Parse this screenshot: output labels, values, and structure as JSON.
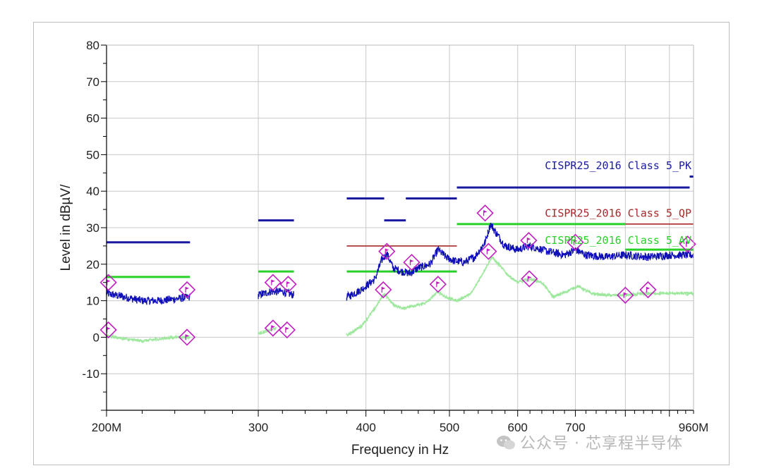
{
  "chart_data": {
    "type": "line",
    "title": "",
    "xlabel": "Frequency in Hz",
    "ylabel": "Level in dBµV/",
    "xscale": "log",
    "xlim": [
      200,
      960
    ],
    "ylim": [
      -20,
      80
    ],
    "x_major_ticks": [
      {
        "value": 200,
        "label": "200M"
      },
      {
        "value": 300,
        "label": "300"
      },
      {
        "value": 400,
        "label": "400"
      },
      {
        "value": 500,
        "label": "500"
      },
      {
        "value": 600,
        "label": "600"
      },
      {
        "value": 700,
        "label": "700"
      },
      {
        "value": 960,
        "label": "960M"
      }
    ],
    "x_minor_ticks": [
      800,
      900
    ],
    "y_ticks": [
      -10,
      0,
      10,
      20,
      30,
      40,
      50,
      60,
      70,
      80
    ],
    "grid": true,
    "colors": {
      "pk_trace": "#1010b8",
      "avg_trace": "#9ee89e",
      "pk_limit": "#1a1aa0",
      "qp_limit": "#a82828",
      "avg_limit": "#28d028",
      "marker": "#c020c0",
      "grid": "#c8c8c8"
    },
    "limit_lines": [
      {
        "name": "CISPR25_2016 Class 5_PK",
        "color": "#1a1aa0",
        "segments": [
          {
            "x": [
              200,
              250
            ],
            "y": 26
          },
          {
            "x": [
              300,
              330
            ],
            "y": 32
          },
          {
            "x": [
              380,
              420
            ],
            "y": 38
          },
          {
            "x": [
              420,
              445
            ],
            "y": 32
          },
          {
            "x": [
              445,
              510
            ],
            "y": 38
          },
          {
            "x": [
              510,
              950
            ],
            "y": 41
          },
          {
            "x": [
              950,
              960
            ],
            "y": 44
          }
        ]
      },
      {
        "name": "CISPR25_2016 Class 5_QP",
        "color": "#a82828",
        "segments": [
          {
            "x": [
              380,
              510
            ],
            "y": 25
          },
          {
            "x": [
              800,
              960
            ],
            "y": 31
          }
        ]
      },
      {
        "name": "CISPR25_2016 Class 5_AV",
        "color": "#28d028",
        "segments": [
          {
            "x": [
              200,
              250
            ],
            "y": 16.5
          },
          {
            "x": [
              300,
              330
            ],
            "y": 18
          },
          {
            "x": [
              380,
              510
            ],
            "y": 18
          },
          {
            "x": [
              510,
              800
            ],
            "y": 31
          },
          {
            "x": [
              800,
              960
            ],
            "y": 24
          }
        ]
      }
    ],
    "limit_labels": [
      {
        "text": "CISPR25_2016 Class 5_PK",
        "x": 960,
        "y": 47,
        "color": "#1a1aa0"
      },
      {
        "text": "CISPR25_2016 Class 5_QP",
        "x": 960,
        "y": 34,
        "color": "#a82828"
      },
      {
        "text": "CISPR25_2016 Class 5_AV",
        "x": 960,
        "y": 26.5,
        "color": "#28d028"
      }
    ],
    "series": [
      {
        "name": "PK trace",
        "color": "#1010b8",
        "noise": 1.1,
        "segments": [
          {
            "x": [
              200,
              210,
              220,
              230,
              240,
              250
            ],
            "y": [
              12,
              11,
              10,
              10,
              10.5,
              11
            ]
          },
          {
            "x": [
              300,
              310,
              320,
              330
            ],
            "y": [
              11.5,
              12.5,
              12.5,
              11.5
            ]
          },
          {
            "x": [
              380,
              395,
              410,
              417,
              423,
              430,
              440,
              450,
              460,
              475,
              485,
              495,
              505,
              520,
              535,
              550,
              558,
              565,
              580,
              600,
              620,
              650,
              680,
              700,
              720,
              760,
              800,
              850,
              900,
              960
            ],
            "y": [
              11,
              13,
              16,
              21,
              23,
              19,
              18,
              17.5,
              19,
              20,
              24,
              22,
              21,
              20.5,
              22,
              26,
              31,
              29,
              25,
              24,
              25,
              23.5,
              22.5,
              24,
              22.5,
              22,
              22.5,
              22,
              22.5,
              22.5
            ]
          }
        ]
      },
      {
        "name": "AV trace",
        "color": "#9ee89e",
        "noise": 0.35,
        "segments": [
          {
            "x": [
              200,
              210,
              220,
              230,
              240,
              250
            ],
            "y": [
              0.5,
              -0.5,
              -1,
              -0.5,
              0,
              0
            ]
          },
          {
            "x": [
              300,
              305,
              310,
              315
            ],
            "y": [
              1,
              1.5,
              2,
              2.5
            ]
          },
          {
            "x": [
              380,
              395,
              410,
              420,
              430,
              440,
              455,
              470,
              485,
              495,
              510,
              530,
              560,
              570,
              585,
              600,
              620,
              640,
              660,
              690,
              705,
              730,
              760,
              800,
              850,
              900,
              960
            ],
            "y": [
              0.5,
              3,
              8,
              12,
              9,
              8,
              8.5,
              9.5,
              12.5,
              11,
              10,
              12,
              22,
              20,
              17,
              15,
              16,
              15,
              11,
              13,
              14,
              12,
              11.5,
              11.5,
              12,
              12,
              12
            ]
          }
        ]
      }
    ],
    "markers": [
      {
        "x": 201,
        "y": 15
      },
      {
        "x": 248,
        "y": 13
      },
      {
        "x": 201,
        "y": 2
      },
      {
        "x": 248,
        "y": 0
      },
      {
        "x": 312,
        "y": 15
      },
      {
        "x": 325,
        "y": 14.5
      },
      {
        "x": 312,
        "y": 2.5
      },
      {
        "x": 324,
        "y": 2
      },
      {
        "x": 423,
        "y": 23.5
      },
      {
        "x": 452,
        "y": 20.5
      },
      {
        "x": 419,
        "y": 13
      },
      {
        "x": 485,
        "y": 14.5
      },
      {
        "x": 550,
        "y": 34
      },
      {
        "x": 555,
        "y": 23.5
      },
      {
        "x": 618,
        "y": 26.5
      },
      {
        "x": 619,
        "y": 16
      },
      {
        "x": 700,
        "y": 26
      },
      {
        "x": 800,
        "y": 11.5
      },
      {
        "x": 850,
        "y": 13
      },
      {
        "x": 945,
        "y": 25.5
      }
    ]
  },
  "watermark": {
    "text": "公众号 · 芯享程半导体"
  }
}
